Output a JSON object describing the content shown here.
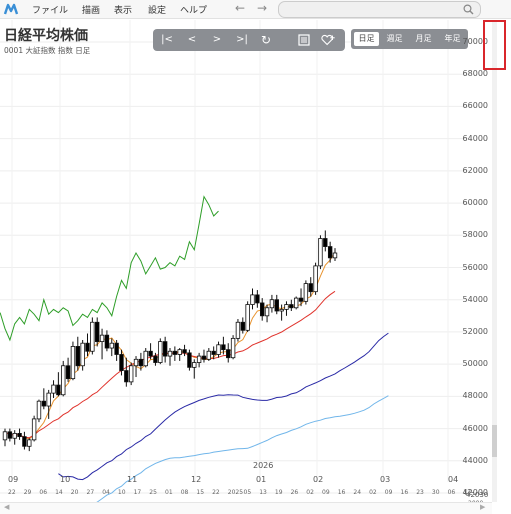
{
  "menu": {
    "items": [
      "ファイル",
      "描画",
      "表示",
      "設定",
      "ヘルプ"
    ],
    "back_arrow": "←",
    "forward_arrow": "→"
  },
  "header": {
    "title": "日経平均株価",
    "subtitle": "0001 大証指数 指数 日足"
  },
  "toolbar": {
    "first": "|<",
    "prev": "<",
    "next": ">",
    "last": ">|",
    "refresh": "↻",
    "icons": [
      "list-icon",
      "heart-plus-icon"
    ]
  },
  "periods": {
    "items": [
      "日足",
      "週足",
      "月足",
      "年足"
    ],
    "active": "日足"
  },
  "axis": {
    "y_ticks": [
      "70000",
      "68000",
      "66000",
      "64000",
      "62000",
      "60000",
      "58000",
      "56000",
      "54000",
      "52000",
      "50000",
      "48000",
      "46000",
      "44000",
      "42000"
    ],
    "bottom_right": "42030",
    "bottom_right_sub": "2000",
    "year_label": "2026",
    "months": [
      "09",
      "10",
      "11",
      "12",
      "01",
      "02",
      "03",
      "04"
    ],
    "days": [
      "22",
      "29",
      "06",
      "14",
      "20",
      "27",
      "04",
      "10",
      "17",
      "25",
      "01",
      "08",
      "15",
      "22",
      "2025",
      "05",
      "13",
      "19",
      "26",
      "02",
      "09",
      "16",
      "24",
      "02",
      "09",
      "16",
      "23",
      "30",
      "06",
      "13"
    ]
  },
  "chart_data": {
    "type": "line",
    "title": "日経平均株価",
    "ylim": [
      42000,
      70000
    ],
    "candles": [
      {
        "o": 45300,
        "h": 46000,
        "l": 44900,
        "c": 45800
      },
      {
        "o": 45800,
        "h": 46000,
        "l": 45200,
        "c": 45400
      },
      {
        "o": 45400,
        "h": 45900,
        "l": 45000,
        "c": 45700
      },
      {
        "o": 45700,
        "h": 46000,
        "l": 45300,
        "c": 45500
      },
      {
        "o": 45500,
        "h": 45800,
        "l": 44700,
        "c": 44900
      },
      {
        "o": 44900,
        "h": 45400,
        "l": 44600,
        "c": 45300
      },
      {
        "o": 45300,
        "h": 46800,
        "l": 45200,
        "c": 46600
      },
      {
        "o": 46600,
        "h": 47800,
        "l": 46400,
        "c": 47700
      },
      {
        "o": 47700,
        "h": 48500,
        "l": 47200,
        "c": 47400
      },
      {
        "o": 47400,
        "h": 48400,
        "l": 46600,
        "c": 48200
      },
      {
        "o": 48200,
        "h": 49000,
        "l": 47900,
        "c": 48700
      },
      {
        "o": 48700,
        "h": 49500,
        "l": 48000,
        "c": 48100
      },
      {
        "o": 48100,
        "h": 50200,
        "l": 48000,
        "c": 49900
      },
      {
        "o": 49900,
        "h": 50400,
        "l": 48900,
        "c": 49100
      },
      {
        "o": 49100,
        "h": 51400,
        "l": 49000,
        "c": 51100
      },
      {
        "o": 51100,
        "h": 51700,
        "l": 49600,
        "c": 49900
      },
      {
        "o": 49900,
        "h": 51500,
        "l": 49600,
        "c": 51300
      },
      {
        "o": 51300,
        "h": 51900,
        "l": 50500,
        "c": 50800
      },
      {
        "o": 50800,
        "h": 52900,
        "l": 50600,
        "c": 52600
      },
      {
        "o": 52600,
        "h": 52900,
        "l": 51100,
        "c": 51400
      },
      {
        "o": 51400,
        "h": 52200,
        "l": 50300,
        "c": 51800
      },
      {
        "o": 51800,
        "h": 52100,
        "l": 50800,
        "c": 51000
      },
      {
        "o": 51000,
        "h": 51600,
        "l": 50500,
        "c": 51300
      },
      {
        "o": 51300,
        "h": 51500,
        "l": 50200,
        "c": 50600
      },
      {
        "o": 50600,
        "h": 50900,
        "l": 49300,
        "c": 49600
      },
      {
        "o": 49600,
        "h": 50400,
        "l": 48600,
        "c": 48900
      },
      {
        "o": 48900,
        "h": 50100,
        "l": 48700,
        "c": 49900
      },
      {
        "o": 49900,
        "h": 50500,
        "l": 49200,
        "c": 50300
      },
      {
        "o": 50300,
        "h": 50700,
        "l": 49600,
        "c": 49900
      },
      {
        "o": 49900,
        "h": 51000,
        "l": 49800,
        "c": 50800
      },
      {
        "o": 50800,
        "h": 51300,
        "l": 50300,
        "c": 50500
      },
      {
        "o": 50500,
        "h": 50700,
        "l": 49900,
        "c": 50100
      },
      {
        "o": 50100,
        "h": 51600,
        "l": 50000,
        "c": 51400
      },
      {
        "o": 51400,
        "h": 51700,
        "l": 50100,
        "c": 50500
      },
      {
        "o": 50500,
        "h": 51000,
        "l": 49900,
        "c": 50800
      },
      {
        "o": 50800,
        "h": 51100,
        "l": 50200,
        "c": 50600
      },
      {
        "o": 50600,
        "h": 51000,
        "l": 50200,
        "c": 50900
      },
      {
        "o": 50900,
        "h": 51200,
        "l": 50500,
        "c": 50700
      },
      {
        "o": 50700,
        "h": 50900,
        "l": 49600,
        "c": 49800
      },
      {
        "o": 49800,
        "h": 50300,
        "l": 49100,
        "c": 50100
      },
      {
        "o": 50100,
        "h": 50700,
        "l": 49800,
        "c": 50500
      },
      {
        "o": 50500,
        "h": 50900,
        "l": 50100,
        "c": 50300
      },
      {
        "o": 50300,
        "h": 51000,
        "l": 50200,
        "c": 50800
      },
      {
        "o": 50800,
        "h": 51100,
        "l": 50300,
        "c": 50600
      },
      {
        "o": 50600,
        "h": 51400,
        "l": 50400,
        "c": 51200
      },
      {
        "o": 51200,
        "h": 51700,
        "l": 50600,
        "c": 50900
      },
      {
        "o": 50900,
        "h": 51300,
        "l": 50100,
        "c": 50400
      },
      {
        "o": 50400,
        "h": 51800,
        "l": 50300,
        "c": 51600
      },
      {
        "o": 51600,
        "h": 52800,
        "l": 51400,
        "c": 52600
      },
      {
        "o": 52600,
        "h": 52900,
        "l": 51900,
        "c": 52100
      },
      {
        "o": 52100,
        "h": 53900,
        "l": 52000,
        "c": 53700
      },
      {
        "o": 53700,
        "h": 54700,
        "l": 53400,
        "c": 54300
      },
      {
        "o": 54300,
        "h": 54600,
        "l": 53500,
        "c": 53800
      },
      {
        "o": 53800,
        "h": 54100,
        "l": 52700,
        "c": 53000
      },
      {
        "o": 53000,
        "h": 53700,
        "l": 52600,
        "c": 53500
      },
      {
        "o": 53500,
        "h": 54300,
        "l": 53200,
        "c": 54000
      },
      {
        "o": 54000,
        "h": 54300,
        "l": 53100,
        "c": 53300
      },
      {
        "o": 53300,
        "h": 53700,
        "l": 52700,
        "c": 53400
      },
      {
        "o": 53400,
        "h": 53900,
        "l": 53000,
        "c": 53700
      },
      {
        "o": 53700,
        "h": 54000,
        "l": 53300,
        "c": 53500
      },
      {
        "o": 53500,
        "h": 54200,
        "l": 53400,
        "c": 54100
      },
      {
        "o": 54100,
        "h": 54700,
        "l": 53600,
        "c": 53900
      },
      {
        "o": 53900,
        "h": 55200,
        "l": 53700,
        "c": 55000
      },
      {
        "o": 55000,
        "h": 55400,
        "l": 54200,
        "c": 54500
      },
      {
        "o": 54500,
        "h": 56300,
        "l": 54300,
        "c": 56100
      },
      {
        "o": 56100,
        "h": 58000,
        "l": 55900,
        "c": 57800
      },
      {
        "o": 57800,
        "h": 58300,
        "l": 57000,
        "c": 57300
      },
      {
        "o": 57300,
        "h": 57600,
        "l": 56300,
        "c": 56600
      },
      {
        "o": 56600,
        "h": 57200,
        "l": 56400,
        "c": 56900
      }
    ]
  },
  "colors": {
    "up": "#ffffff",
    "down": "#000000",
    "ma_short": "#e8932e",
    "ma_mid": "#e0332c",
    "span_a": "#2a2aa6",
    "span_b": "#71b6ea",
    "lagging": "#2e9e28",
    "highlight": "#d9262b"
  }
}
